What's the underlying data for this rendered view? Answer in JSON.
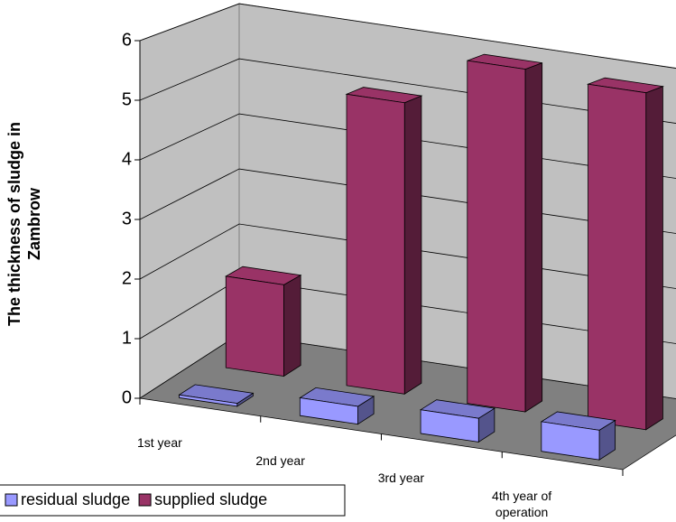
{
  "chart_data": {
    "type": "bar3d",
    "ylabel": [
      "The thickness of sludge in",
      "Zambrow"
    ],
    "categories": [
      "1st year",
      "2nd year",
      "3rd year",
      "4th year of operation"
    ],
    "series": [
      {
        "name": "residual sludge",
        "color": "#9999ff",
        "values": [
          0.05,
          0.3,
          0.4,
          0.5
        ]
      },
      {
        "name": "supplied sludge",
        "color": "#993366",
        "values": [
          1.6,
          5.1,
          6.0,
          5.9
        ]
      }
    ],
    "ylim": [
      0,
      6
    ],
    "yticks": [
      0,
      1,
      2,
      3,
      4,
      5,
      6
    ],
    "grid": true,
    "legend": "bottom"
  }
}
